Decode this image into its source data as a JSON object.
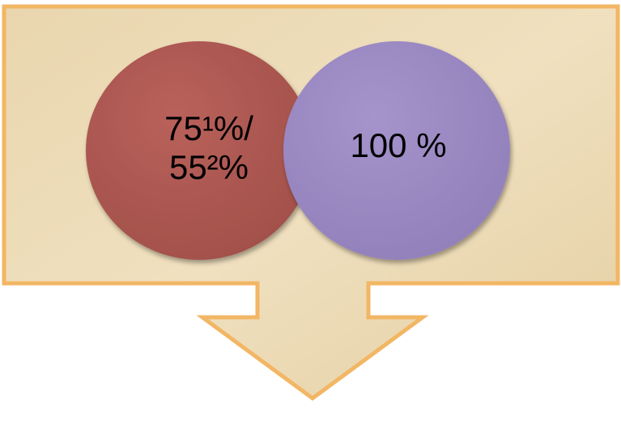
{
  "circles": [
    {
      "lines": [
        "75¹%/",
        "55²%"
      ]
    },
    {
      "lines": [
        "100 %"
      ]
    }
  ]
}
